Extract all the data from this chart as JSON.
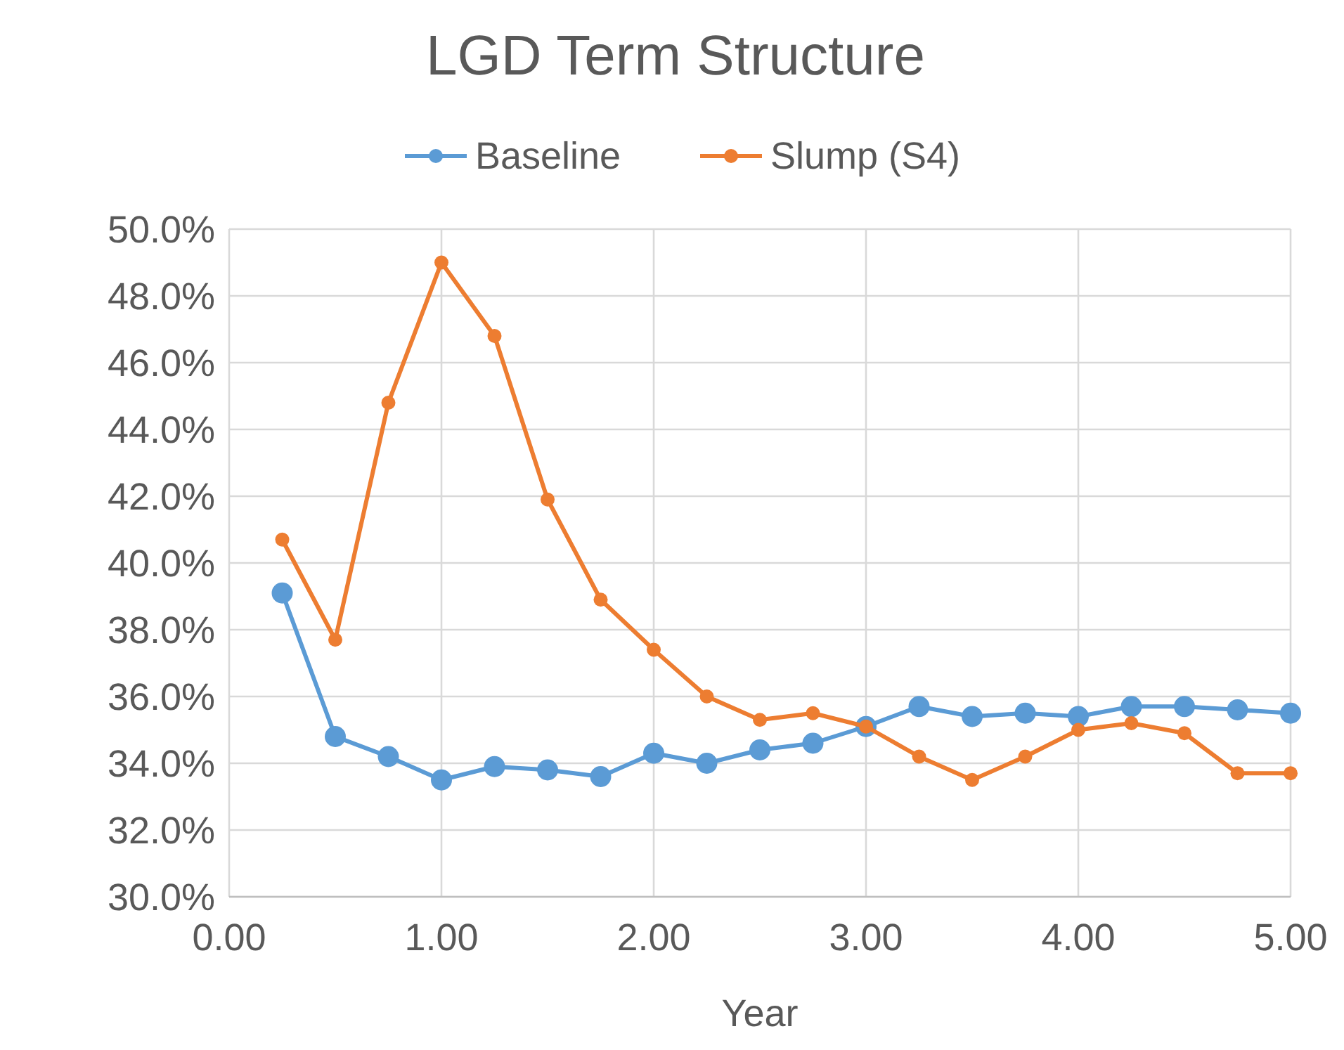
{
  "chart_data": {
    "type": "line",
    "title": "LGD Term Structure",
    "xlabel": "Year",
    "xlim": [
      0,
      5
    ],
    "xticks": [
      {
        "value": 0,
        "label": "0.00"
      },
      {
        "value": 1,
        "label": "1.00"
      },
      {
        "value": 2,
        "label": "2.00"
      },
      {
        "value": 3,
        "label": "3.00"
      },
      {
        "value": 4,
        "label": "4.00"
      },
      {
        "value": 5,
        "label": "5.00"
      }
    ],
    "ylim": [
      30,
      50
    ],
    "yticks": [
      {
        "value": 30,
        "label": "30.0%"
      },
      {
        "value": 32,
        "label": "32.0%"
      },
      {
        "value": 34,
        "label": "34.0%"
      },
      {
        "value": 36,
        "label": "36.0%"
      },
      {
        "value": 38,
        "label": "38.0%"
      },
      {
        "value": 40,
        "label": "40.0%"
      },
      {
        "value": 42,
        "label": "42.0%"
      },
      {
        "value": 44,
        "label": "44.0%"
      },
      {
        "value": 46,
        "label": "46.0%"
      },
      {
        "value": 48,
        "label": "48.0%"
      },
      {
        "value": 50,
        "label": "50.0%"
      }
    ],
    "x": [
      0.25,
      0.5,
      0.75,
      1,
      1.25,
      1.5,
      1.75,
      2,
      2.25,
      2.5,
      2.75,
      3,
      3.25,
      3.5,
      3.75,
      4,
      4.25,
      4.5,
      4.75,
      5
    ],
    "series": [
      {
        "name": "Baseline",
        "color": "#5b9bd5",
        "values": [
          39.1,
          34.8,
          34.2,
          33.5,
          33.9,
          33.8,
          33.6,
          34.3,
          34.0,
          34.4,
          34.6,
          35.1,
          35.7,
          35.4,
          35.5,
          35.4,
          35.7,
          35.7,
          35.6,
          35.5
        ]
      },
      {
        "name": "Slump (S4)",
        "color": "#ed7d31",
        "values": [
          40.7,
          37.7,
          44.8,
          49.0,
          46.8,
          41.9,
          38.9,
          37.4,
          36.0,
          35.3,
          35.5,
          35.1,
          34.2,
          33.5,
          34.2,
          35.0,
          35.2,
          34.9,
          33.7,
          33.7
        ]
      }
    ],
    "grid": true,
    "legend": "top",
    "marker": "circle",
    "line_style": "solid"
  }
}
